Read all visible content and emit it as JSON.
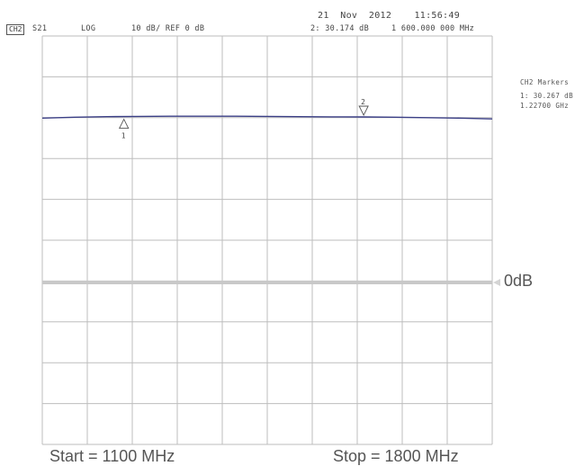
{
  "header": {
    "channel_badge": "CH2",
    "param": "S21",
    "format": "LOG",
    "scale": "10 dB/ REF 0 dB",
    "datetime": "21  Nov  2012    11:56:49",
    "marker_readout_value": "2: 30.174 dB",
    "marker_readout_freq": "1 600.000 000 MHz"
  },
  "marker_panel": {
    "title": "CH2 Markers",
    "marker1_value": "1: 30.267 dB",
    "marker1_freq": "1.22700 GHz"
  },
  "markers": [
    {
      "label": "1",
      "freq_mhz": 1227,
      "value_db": 30.267
    },
    {
      "label": "2",
      "freq_mhz": 1600,
      "value_db": 30.174
    }
  ],
  "reference_label": "0dB",
  "footer": {
    "start": "Start = 1100 MHz",
    "stop": "Stop = 1800 MHz"
  },
  "colors": {
    "trace": "#3b3f86",
    "grid": "#bdbdbd",
    "reference_line": "#c8c8c8"
  },
  "chart_data": {
    "type": "line",
    "x_unit": "MHz",
    "xlim": [
      1100,
      1800
    ],
    "y_unit": "dB",
    "ylim": [
      -50,
      50
    ],
    "grid": true,
    "series": [
      {
        "x": [
          1100,
          1150,
          1200,
          1250,
          1300,
          1350,
          1400,
          1450,
          1500,
          1550,
          1600,
          1650,
          1700,
          1750,
          1800
        ],
        "values": [
          29.9,
          30.1,
          30.25,
          30.3,
          30.35,
          30.35,
          30.35,
          30.3,
          30.25,
          30.2,
          30.17,
          30.1,
          30.0,
          29.9,
          29.7
        ]
      }
    ]
  }
}
